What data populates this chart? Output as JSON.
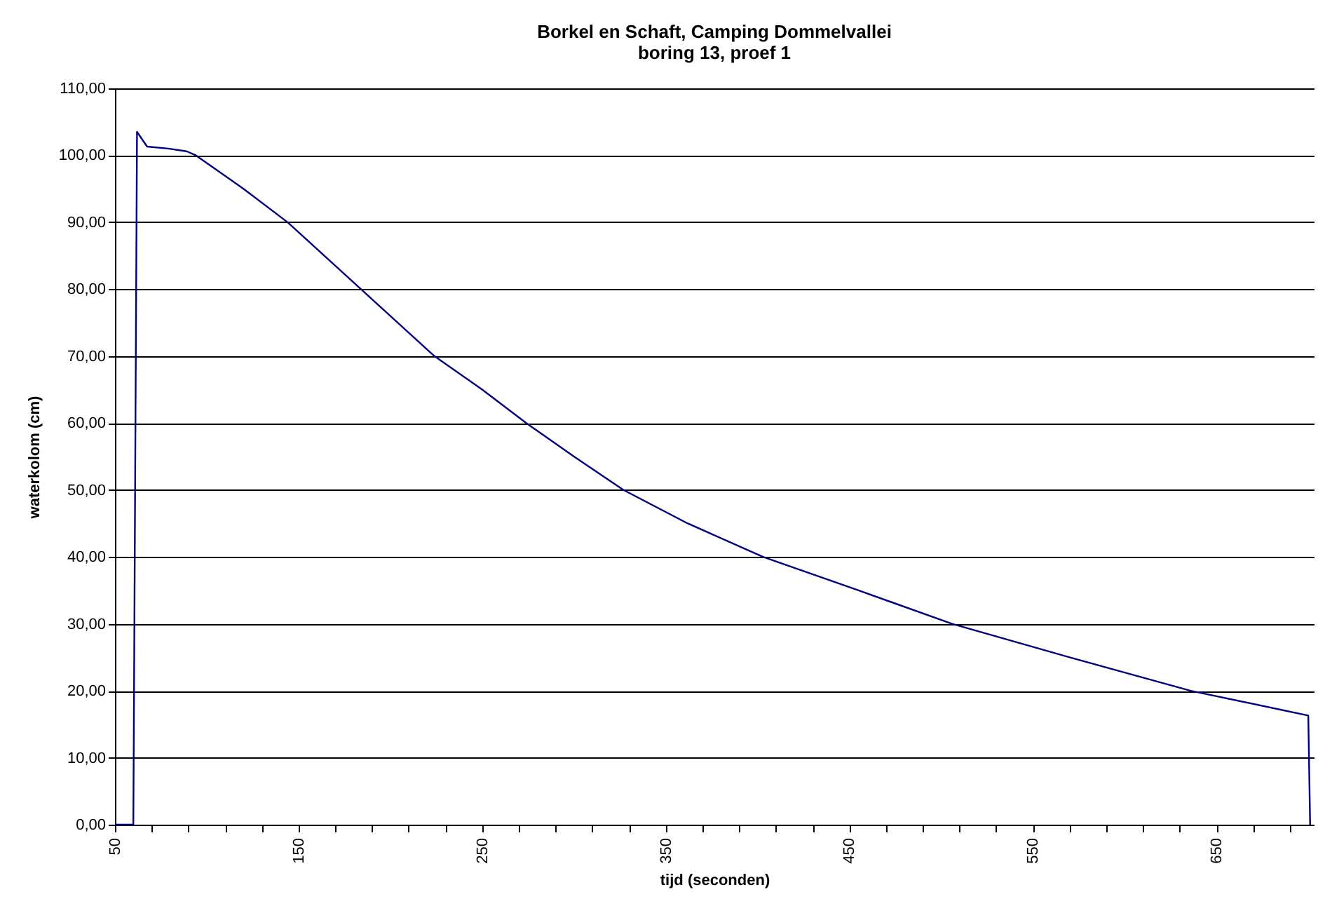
{
  "chart_data": {
    "type": "line",
    "title": "Borkel en Schaft, Camping Dommelvallei",
    "subtitle": "boring 13, proef 1",
    "xlabel": "tijd (seconden)",
    "ylabel": "waterkolom (cm)",
    "x": [
      50,
      60,
      62,
      67.5,
      79,
      89,
      94,
      120,
      144,
      184,
      224,
      250,
      274,
      300,
      327,
      362,
      403,
      455,
      506,
      570,
      636,
      700,
      701
    ],
    "series": [
      {
        "color": "#000080",
        "values": [
          0,
          0,
          103.5,
          101.3,
          101,
          100.6,
          100,
          95,
          90,
          80,
          70,
          65,
          60,
          55,
          50,
          45,
          40,
          35,
          30,
          25,
          20,
          16.3,
          0
        ]
      }
    ],
    "xlim": [
      50,
      703
    ],
    "ylim": [
      0,
      110
    ],
    "xticks": [
      50,
      {
        "value": 70,
        "label": null
      },
      {
        "value": 90,
        "label": null
      },
      {
        "value": 110,
        "label": null
      },
      {
        "value": 130,
        "label": null
      },
      150,
      {
        "value": 170,
        "label": null
      },
      {
        "value": 190,
        "label": null
      },
      {
        "value": 210,
        "label": null
      },
      {
        "value": 230,
        "label": null
      },
      250,
      {
        "value": 270,
        "label": null
      },
      {
        "value": 290,
        "label": null
      },
      {
        "value": 310,
        "label": null
      },
      {
        "value": 330,
        "label": null
      },
      350,
      {
        "value": 370,
        "label": null
      },
      {
        "value": 390,
        "label": null
      },
      {
        "value": 410,
        "label": null
      },
      {
        "value": 430,
        "label": null
      },
      450,
      {
        "value": 470,
        "label": null
      },
      {
        "value": 490,
        "label": null
      },
      {
        "value": 510,
        "label": null
      },
      {
        "value": 530,
        "label": null
      },
      550,
      {
        "value": 570,
        "label": null
      },
      {
        "value": 590,
        "label": null
      },
      {
        "value": 610,
        "label": null
      },
      {
        "value": 630,
        "label": null
      },
      650,
      {
        "value": 670,
        "label": null
      },
      {
        "value": 690,
        "label": null
      }
    ],
    "yticks": [
      {
        "value": 0,
        "label": "0,00"
      },
      {
        "value": 10,
        "label": "10,00"
      },
      {
        "value": 20,
        "label": "20,00"
      },
      {
        "value": 30,
        "label": "30,00"
      },
      {
        "value": 40,
        "label": "40,00"
      },
      {
        "value": 50,
        "label": "50,00"
      },
      {
        "value": 60,
        "label": "60,00"
      },
      {
        "value": 70,
        "label": "70,00"
      },
      {
        "value": 80,
        "label": "80,00"
      },
      {
        "value": 90,
        "label": "90,00"
      },
      {
        "value": 100,
        "label": "100,00"
      },
      {
        "value": 110,
        "label": "110,00"
      }
    ],
    "grid": "y",
    "marker": "none",
    "line_style": "solid"
  }
}
